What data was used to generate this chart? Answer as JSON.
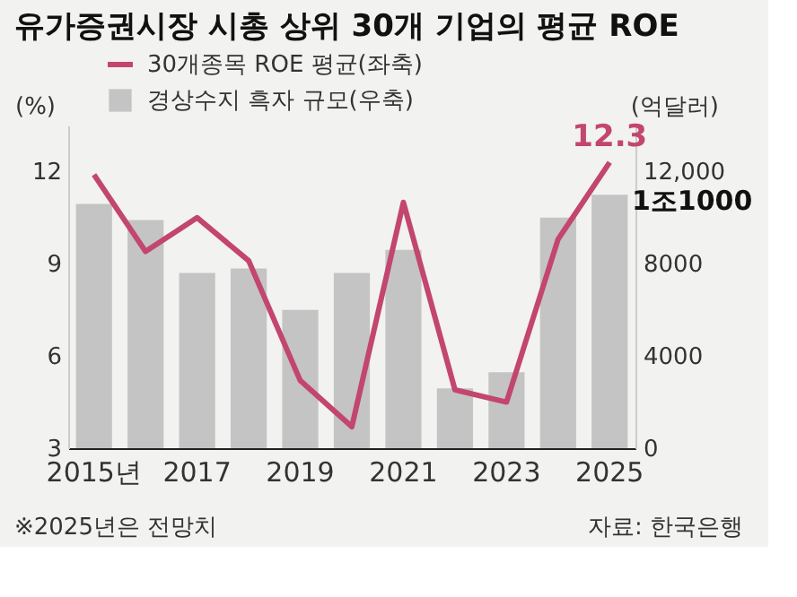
{
  "chart_data": {
    "type": "bar",
    "title": "유가증권시장 시총 상위 30개 기업의 평균 ROE",
    "categories": [
      "2015년",
      null,
      "2017",
      null,
      "2019",
      null,
      "2021",
      null,
      "2023",
      null,
      "2025"
    ],
    "series": [
      {
        "name": "경상수지 흑자 규모(우축)",
        "axis": "y2",
        "color": "#c4c4c4",
        "values": [
          10600,
          9900,
          7600,
          7800,
          6000,
          7600,
          8600,
          2600,
          3300,
          10000,
          11000
        ]
      },
      {
        "name": "30개종목 ROE 평균(좌축)",
        "type": "line",
        "axis": "y",
        "color": "#c2466f",
        "values": [
          11.9,
          9.4,
          10.5,
          9.1,
          5.2,
          3.7,
          11.0,
          4.9,
          4.5,
          9.8,
          12.3
        ]
      }
    ],
    "ylabel": "(%)",
    "y2label": "(억달러)",
    "ylim": [
      3,
      13.5
    ],
    "yticks": [
      3,
      6,
      9,
      12
    ],
    "y2lim": [
      0,
      14000
    ],
    "y2ticks": [
      0,
      4000,
      8000,
      {
        "value": 12000,
        "label": "12,000"
      }
    ],
    "grid": false,
    "legend": "top left",
    "marker": "none",
    "line_style": "solid",
    "annotations": [
      {
        "text": "12.3",
        "x": "2025",
        "y": 12.3
      },
      "1조1000",
      "※2025년은 전망치",
      "자료: 한국은행"
    ]
  }
}
